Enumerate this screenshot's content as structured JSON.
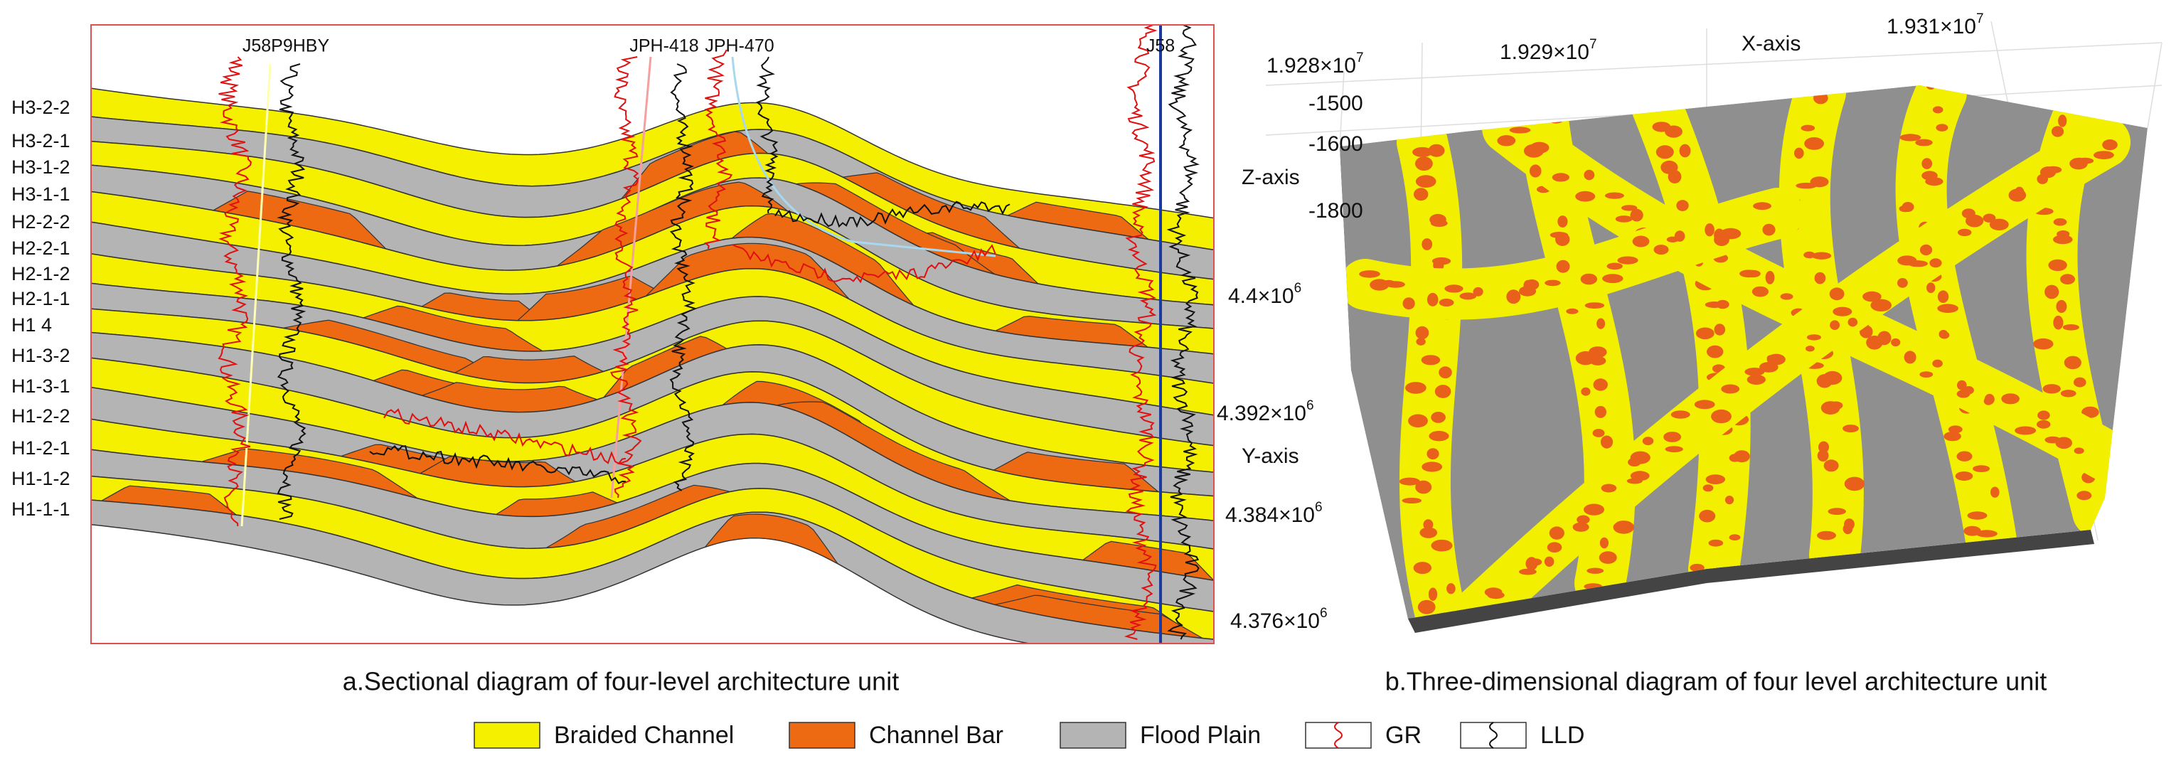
{
  "section": {
    "layer_labels": [
      "H3-2-2",
      "H3-2-1",
      "H3-1-2",
      "H3-1-1",
      "H2-2-2",
      "H2-2-1",
      "H2-1-2",
      "H2-1-1",
      "H1  4",
      "H1-3-2",
      "H1-3-1",
      "H1-2-2",
      "H1-2-1",
      "H1-1-2",
      "H1-1-1"
    ],
    "wells": [
      "J58P9HBY",
      "JPH-418",
      "JPH-470",
      "J58"
    ],
    "caption": "a.Sectional diagram of four-level architecture unit"
  },
  "view3d": {
    "x_axis_label": "X-axis",
    "y_axis_label": "Y-axis",
    "z_axis_label": "Z-axis",
    "x_ticks": [
      {
        "base": "1.928×10",
        "exp": "7"
      },
      {
        "base": "1.929×10",
        "exp": "7"
      },
      {
        "base": "1.931×10",
        "exp": "7"
      }
    ],
    "z_ticks": [
      "-1500",
      "-1600",
      "-1800"
    ],
    "y_ticks": [
      {
        "base": "4.4×10",
        "exp": "6"
      },
      {
        "base": "4.392×10",
        "exp": "6"
      },
      {
        "base": "4.384×10",
        "exp": "6"
      },
      {
        "base": "4.376×10",
        "exp": "6"
      }
    ],
    "caption": "b.Three-dimensional diagram of four level architecture unit"
  },
  "legend": [
    "Braided Channel",
    "Channel Bar",
    "Flood Plain",
    "GR",
    "LLD"
  ]
}
